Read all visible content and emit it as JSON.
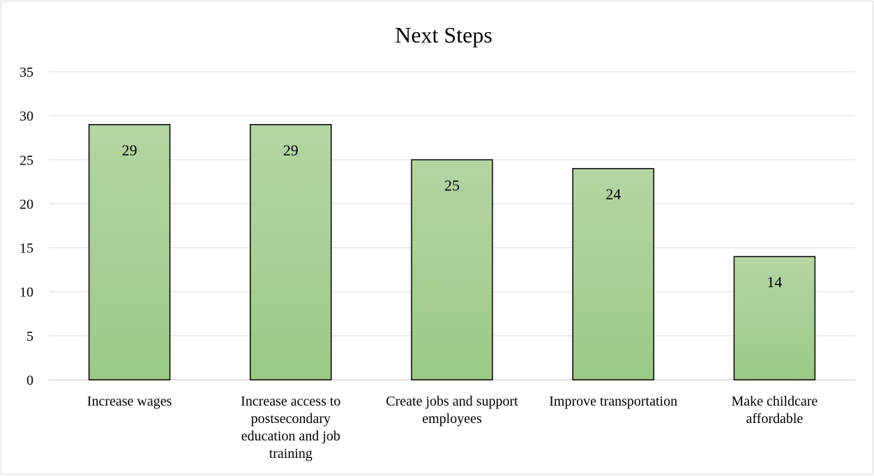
{
  "chart_data": {
    "type": "bar",
    "title": "Next Steps",
    "xlabel": "",
    "ylabel": "",
    "categories": [
      "Increase wages",
      "Increase access to postsecondary education and job training",
      "Create jobs and support employees",
      "Improve transportation",
      "Make childcare affordable"
    ],
    "category_lines": [
      [
        "Increase wages"
      ],
      [
        "Increase access to",
        "postsecondary",
        "education and job",
        "training"
      ],
      [
        "Create jobs and support",
        "employees"
      ],
      [
        "Improve transportation"
      ],
      [
        "Make childcare",
        "affordable"
      ]
    ],
    "values": [
      29,
      29,
      25,
      24,
      14
    ],
    "ylim": [
      0,
      35
    ],
    "yticks": [
      0,
      5,
      10,
      15,
      20,
      25,
      30,
      35
    ],
    "grid": true,
    "legend": "none",
    "data_labels": true,
    "colors": {
      "bar_top": "#b5d4a3",
      "bar_bottom": "#9bc987",
      "bar_border": "#000000",
      "grid": "#d9d9d9"
    }
  }
}
